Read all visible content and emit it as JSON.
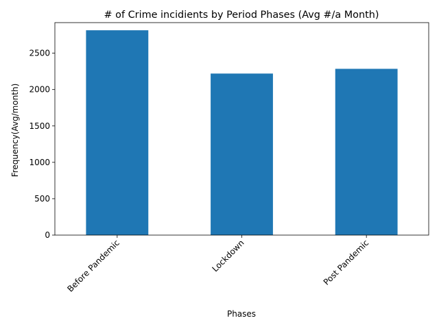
{
  "chart_data": {
    "type": "bar",
    "title": "# of Crime incidients by Period Phases (Avg #/a Month)",
    "xlabel": "Phases",
    "ylabel": "Frequency(Avg/month)",
    "categories": [
      "Before Pandemic",
      "Lockdown",
      "Post Pandemic"
    ],
    "values": [
      2815,
      2220,
      2285
    ],
    "ylim": [
      0,
      2920
    ],
    "yticks": [
      0,
      500,
      1000,
      1500,
      2000,
      2500
    ],
    "bar_color": "#1f77b4",
    "grid": false,
    "legend": "none"
  }
}
